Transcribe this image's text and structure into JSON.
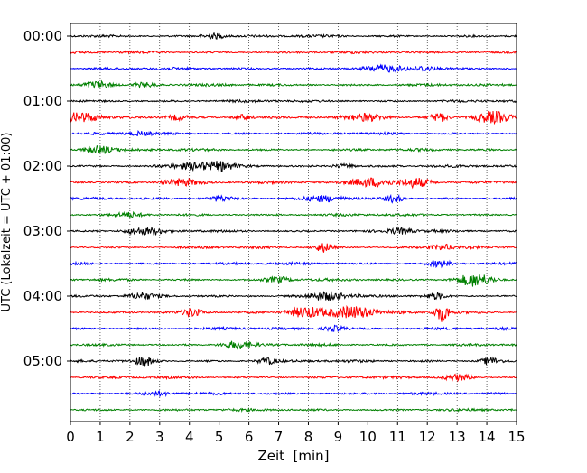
{
  "chart_data": {
    "type": "line",
    "title": "",
    "xlabel": "Zeit  [min]",
    "ylabel": "UTC (Lokalzeit = UTC + 01:00)",
    "xlim": [
      0,
      15
    ],
    "x_ticks": [
      0,
      1,
      2,
      3,
      4,
      5,
      6,
      7,
      8,
      9,
      10,
      11,
      12,
      13,
      14,
      15
    ],
    "y_tick_labels": [
      "00:00",
      "01:00",
      "02:00",
      "03:00",
      "04:00",
      "05:00"
    ],
    "trace_interval_min": 15,
    "trace_count": 24,
    "trace_color_cycle": [
      "#000000",
      "#ff0000",
      "#0000ff",
      "#008000"
    ],
    "grid": "vertical dotted",
    "legend": "none"
  }
}
